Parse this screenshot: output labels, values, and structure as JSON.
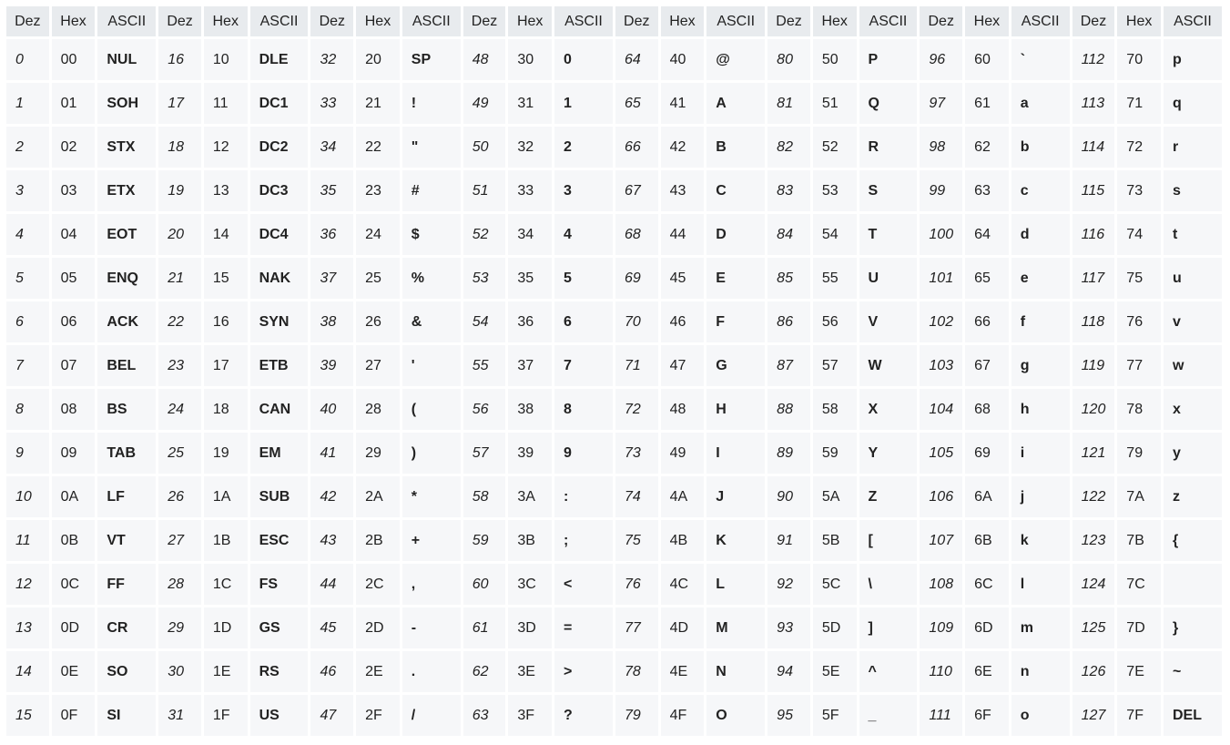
{
  "headers": [
    "Dez",
    "Hex",
    "ASCII"
  ],
  "rows": [
    [
      [
        "0",
        "00",
        "NUL"
      ],
      [
        "16",
        "10",
        "DLE"
      ],
      [
        "32",
        "20",
        "SP"
      ],
      [
        "48",
        "30",
        "0"
      ],
      [
        "64",
        "40",
        "@"
      ],
      [
        "80",
        "50",
        "P"
      ],
      [
        "96",
        "60",
        "`"
      ],
      [
        "112",
        "70",
        "p"
      ]
    ],
    [
      [
        "1",
        "01",
        "SOH"
      ],
      [
        "17",
        "11",
        "DC1"
      ],
      [
        "33",
        "21",
        "!"
      ],
      [
        "49",
        "31",
        "1"
      ],
      [
        "65",
        "41",
        "A"
      ],
      [
        "81",
        "51",
        "Q"
      ],
      [
        "97",
        "61",
        "a"
      ],
      [
        "113",
        "71",
        "q"
      ]
    ],
    [
      [
        "2",
        "02",
        "STX"
      ],
      [
        "18",
        "12",
        "DC2"
      ],
      [
        "34",
        "22",
        "\""
      ],
      [
        "50",
        "32",
        "2"
      ],
      [
        "66",
        "42",
        "B"
      ],
      [
        "82",
        "52",
        "R"
      ],
      [
        "98",
        "62",
        "b"
      ],
      [
        "114",
        "72",
        "r"
      ]
    ],
    [
      [
        "3",
        "03",
        "ETX"
      ],
      [
        "19",
        "13",
        "DC3"
      ],
      [
        "35",
        "23",
        "#"
      ],
      [
        "51",
        "33",
        "3"
      ],
      [
        "67",
        "43",
        "C"
      ],
      [
        "83",
        "53",
        "S"
      ],
      [
        "99",
        "63",
        "c"
      ],
      [
        "115",
        "73",
        "s"
      ]
    ],
    [
      [
        "4",
        "04",
        "EOT"
      ],
      [
        "20",
        "14",
        "DC4"
      ],
      [
        "36",
        "24",
        "$"
      ],
      [
        "52",
        "34",
        "4"
      ],
      [
        "68",
        "44",
        "D"
      ],
      [
        "84",
        "54",
        "T"
      ],
      [
        "100",
        "64",
        "d"
      ],
      [
        "116",
        "74",
        "t"
      ]
    ],
    [
      [
        "5",
        "05",
        "ENQ"
      ],
      [
        "21",
        "15",
        "NAK"
      ],
      [
        "37",
        "25",
        "%"
      ],
      [
        "53",
        "35",
        "5"
      ],
      [
        "69",
        "45",
        "E"
      ],
      [
        "85",
        "55",
        "U"
      ],
      [
        "101",
        "65",
        "e"
      ],
      [
        "117",
        "75",
        "u"
      ]
    ],
    [
      [
        "6",
        "06",
        "ACK"
      ],
      [
        "22",
        "16",
        "SYN"
      ],
      [
        "38",
        "26",
        "&"
      ],
      [
        "54",
        "36",
        "6"
      ],
      [
        "70",
        "46",
        "F"
      ],
      [
        "86",
        "56",
        "V"
      ],
      [
        "102",
        "66",
        "f"
      ],
      [
        "118",
        "76",
        "v"
      ]
    ],
    [
      [
        "7",
        "07",
        "BEL"
      ],
      [
        "23",
        "17",
        "ETB"
      ],
      [
        "39",
        "27",
        "'"
      ],
      [
        "55",
        "37",
        "7"
      ],
      [
        "71",
        "47",
        "G"
      ],
      [
        "87",
        "57",
        "W"
      ],
      [
        "103",
        "67",
        "g"
      ],
      [
        "119",
        "77",
        "w"
      ]
    ],
    [
      [
        "8",
        "08",
        "BS"
      ],
      [
        "24",
        "18",
        "CAN"
      ],
      [
        "40",
        "28",
        "("
      ],
      [
        "56",
        "38",
        "8"
      ],
      [
        "72",
        "48",
        "H"
      ],
      [
        "88",
        "58",
        "X"
      ],
      [
        "104",
        "68",
        "h"
      ],
      [
        "120",
        "78",
        "x"
      ]
    ],
    [
      [
        "9",
        "09",
        "TAB"
      ],
      [
        "25",
        "19",
        "EM"
      ],
      [
        "41",
        "29",
        ")"
      ],
      [
        "57",
        "39",
        "9"
      ],
      [
        "73",
        "49",
        "I"
      ],
      [
        "89",
        "59",
        "Y"
      ],
      [
        "105",
        "69",
        "i"
      ],
      [
        "121",
        "79",
        "y"
      ]
    ],
    [
      [
        "10",
        "0A",
        "LF"
      ],
      [
        "26",
        "1A",
        "SUB"
      ],
      [
        "42",
        "2A",
        "*"
      ],
      [
        "58",
        "3A",
        ":"
      ],
      [
        "74",
        "4A",
        "J"
      ],
      [
        "90",
        "5A",
        "Z"
      ],
      [
        "106",
        "6A",
        "j"
      ],
      [
        "122",
        "7A",
        "z"
      ]
    ],
    [
      [
        "11",
        "0B",
        "VT"
      ],
      [
        "27",
        "1B",
        "ESC"
      ],
      [
        "43",
        "2B",
        "+"
      ],
      [
        "59",
        "3B",
        ";"
      ],
      [
        "75",
        "4B",
        "K"
      ],
      [
        "91",
        "5B",
        "["
      ],
      [
        "107",
        "6B",
        "k"
      ],
      [
        "123",
        "7B",
        "{"
      ]
    ],
    [
      [
        "12",
        "0C",
        "FF"
      ],
      [
        "28",
        "1C",
        "FS"
      ],
      [
        "44",
        "2C",
        ","
      ],
      [
        "60",
        "3C",
        "<"
      ],
      [
        "76",
        "4C",
        "L"
      ],
      [
        "92",
        "5C",
        "\\"
      ],
      [
        "108",
        "6C",
        "l"
      ],
      [
        "124",
        "7C",
        ""
      ]
    ],
    [
      [
        "13",
        "0D",
        "CR"
      ],
      [
        "29",
        "1D",
        "GS"
      ],
      [
        "45",
        "2D",
        "-"
      ],
      [
        "61",
        "3D",
        "="
      ],
      [
        "77",
        "4D",
        "M"
      ],
      [
        "93",
        "5D",
        "]"
      ],
      [
        "109",
        "6D",
        "m"
      ],
      [
        "125",
        "7D",
        "}"
      ]
    ],
    [
      [
        "14",
        "0E",
        "SO"
      ],
      [
        "30",
        "1E",
        "RS"
      ],
      [
        "46",
        "2E",
        "."
      ],
      [
        "62",
        "3E",
        ">"
      ],
      [
        "78",
        "4E",
        "N"
      ],
      [
        "94",
        "5E",
        "^"
      ],
      [
        "110",
        "6E",
        "n"
      ],
      [
        "126",
        "7E",
        "~"
      ]
    ],
    [
      [
        "15",
        "0F",
        "SI"
      ],
      [
        "31",
        "1F",
        "US"
      ],
      [
        "47",
        "2F",
        "/"
      ],
      [
        "63",
        "3F",
        "?"
      ],
      [
        "79",
        "4F",
        "O"
      ],
      [
        "95",
        "5F",
        "_"
      ],
      [
        "111",
        "6F",
        "o"
      ],
      [
        "127",
        "7F",
        "DEL"
      ]
    ]
  ]
}
